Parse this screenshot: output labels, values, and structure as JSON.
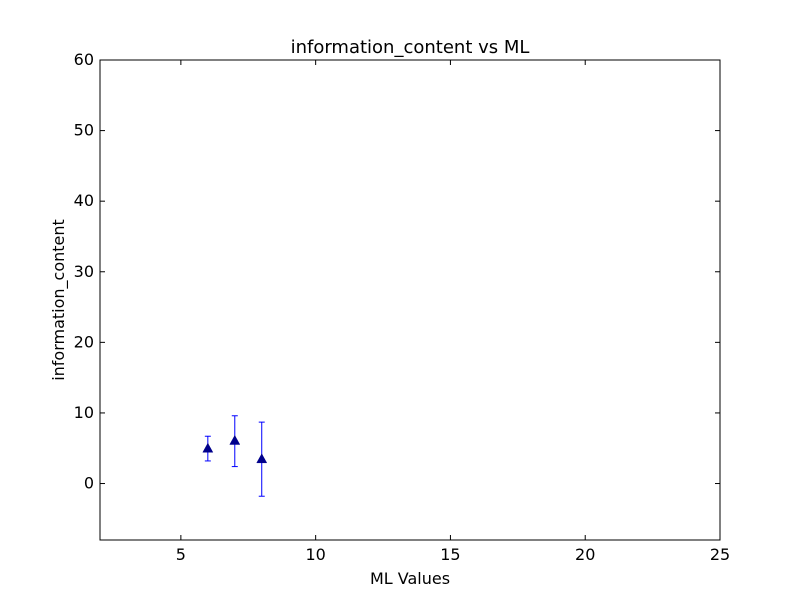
{
  "chart_data": {
    "type": "scatter",
    "title": "information_content vs ML",
    "xlabel": "ML Values",
    "ylabel": "information_content",
    "xlim": [
      2,
      25
    ],
    "ylim": [
      -8,
      60
    ],
    "xticks": [
      5,
      10,
      15,
      20,
      25
    ],
    "yticks": [
      0,
      10,
      20,
      30,
      40,
      50,
      60
    ],
    "grid": false,
    "marker": "triangle",
    "color": "#00008b",
    "errorbar_color": "#0000ff",
    "points": [
      {
        "x": 6,
        "y": 5.0,
        "err_low": 3.2,
        "err_high": 6.7
      },
      {
        "x": 7,
        "y": 6.1,
        "err_low": 2.4,
        "err_high": 9.6
      },
      {
        "x": 8,
        "y": 3.5,
        "err_low": -1.8,
        "err_high": 8.7
      }
    ]
  }
}
